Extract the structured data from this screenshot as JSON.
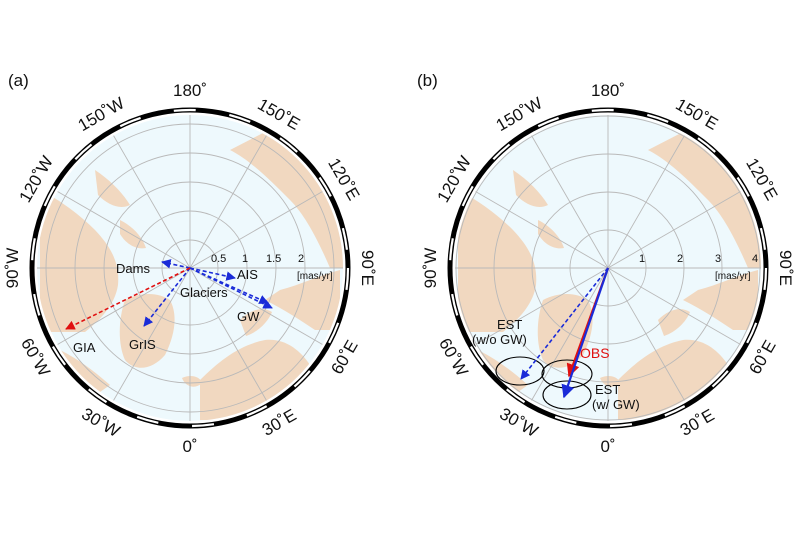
{
  "panels": [
    {
      "id": "a",
      "label": "(a)",
      "center": [
        190,
        268
      ],
      "radius": 153,
      "ring_labels": [
        "0.5",
        "1",
        "1.5",
        "2"
      ],
      "unit": "[mas/yr]",
      "arrows": [
        {
          "name": "Dams",
          "label": "Dams",
          "color": "#1a2bd8",
          "style": "dashed",
          "tip": [
            -28,
            -6
          ]
        },
        {
          "name": "AIS",
          "label": "AIS",
          "color": "#1a2bd8",
          "style": "dashed",
          "tip": [
            45,
            10
          ]
        },
        {
          "name": "Glaciers",
          "label": "Glaciers",
          "color": "#1a2bd8",
          "style": "dashed",
          "tip": [
            78,
            35
          ]
        },
        {
          "name": "GW",
          "label": "GW",
          "color": "#1a2bd8",
          "style": "dashed",
          "tip": [
            82,
            40
          ]
        },
        {
          "name": "GrIS",
          "label": "GrIS",
          "color": "#1a2bd8",
          "style": "dashed",
          "tip": [
            -46,
            58
          ]
        },
        {
          "name": "GIA",
          "label": "GIA",
          "color": "#e01010",
          "style": "dashed",
          "tip": [
            -124,
            61
          ]
        }
      ]
    },
    {
      "id": "b",
      "label": "(b)",
      "center": [
        608,
        268
      ],
      "radius": 153,
      "ring_labels": [
        "1",
        "2",
        "3",
        "4"
      ],
      "unit": "[mas/yr]",
      "arrows": [
        {
          "name": "OBS",
          "label": "OBS",
          "color": "#e01010",
          "style": "solid",
          "tip": [
            -39,
            108
          ]
        },
        {
          "name": "EST-w-GW",
          "label": "EST (w/ GW)",
          "color": "#1a2bd8",
          "style": "solid",
          "tip": [
            -44,
            129
          ]
        },
        {
          "name": "EST-wo-GW",
          "label": "EST (w/o GW)",
          "color": "#1a2bd8",
          "style": "dashed",
          "tip": [
            -87,
            111
          ]
        }
      ]
    }
  ],
  "longitudes": [
    "180˚",
    "150˚E",
    "120˚E",
    "90˚E",
    "60˚E",
    "30˚E",
    "0˚",
    "30˚W",
    "60˚W",
    "90˚W",
    "120˚W",
    "150˚W"
  ],
  "text": {
    "a_label": "(a)",
    "b_label": "(b)",
    "a_unit": "[mas/yr]",
    "b_unit": "[mas/yr]",
    "a_ring_1": "0.5",
    "a_ring_2": "1",
    "a_ring_3": "1.5",
    "a_ring_4": "2",
    "b_ring_1": "1",
    "b_ring_2": "2",
    "b_ring_3": "3",
    "b_ring_4": "4",
    "dams": "Dams",
    "ais": "AIS",
    "glaciers": "Glaciers",
    "gw": "GW",
    "gris": "GrIS",
    "gia": "GIA",
    "obs": "OBS",
    "est_wo_1": "EST",
    "est_wo_2": "(w/o GW)",
    "est_w_1": "EST",
    "est_w_2": "(w/ GW)"
  },
  "colors": {
    "ocean": "#eef9fd",
    "land": "#f1d8c0",
    "grid": "#b9b9b9",
    "blue_arrow": "#1a2bd8",
    "red_arrow": "#e01010",
    "frame": "#000000"
  }
}
